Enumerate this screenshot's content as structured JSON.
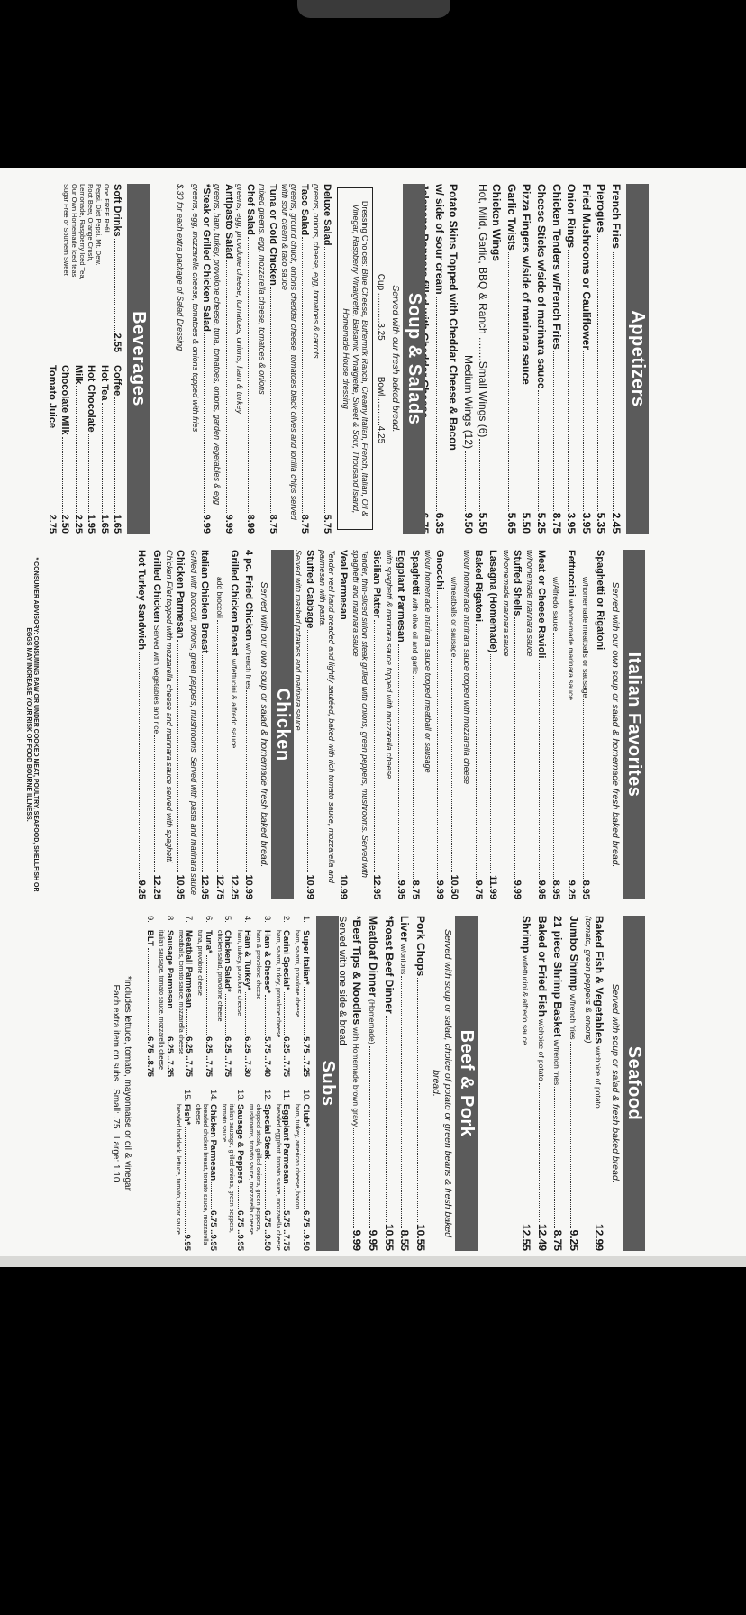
{
  "appetizers": {
    "title": "Appetizers",
    "items": [
      {
        "name": "French Fries",
        "price": "2.45"
      },
      {
        "name": "Pierogies",
        "price": "5.35"
      },
      {
        "name": "Fried Mushrooms or Cauliflower",
        "price": "3.95"
      },
      {
        "name": "Onion Rings",
        "price": "3.95"
      },
      {
        "name": "Chicken Tenders w/French Fries",
        "price": "8.75"
      },
      {
        "name": "Cheese Sticks w/side of marinara sauce",
        "price": "5.25"
      },
      {
        "name": "Pizza Fingers w/side of marinara sauce",
        "price": "5.50"
      },
      {
        "name": "Garlic Twists",
        "price": "5.65"
      },
      {
        "name": "Chicken Wings",
        "sizes": [
          {
            "label": "Hot, Mild, Garlic, BBQ & Ranch ........Small Wings (6)",
            "price": "5.50"
          },
          {
            "label": "Medium Wings (12)",
            "price": "9.50"
          }
        ]
      },
      {
        "name": "Potato Skins Topped with Cheddar Cheese & Bacon",
        "line2": "w/ side of sour cream",
        "price": "6.35"
      },
      {
        "name": "Jalapeno Poppers filled with Cheddar Cheese",
        "price": "6.75"
      }
    ]
  },
  "soup_salads": {
    "title": "Soup & Salads",
    "subtitle": "Served with our fresh baked bread.",
    "cup": "Cup ............3.25",
    "bowl": "Bowl............4.25",
    "dressing_label": "Dressing Choices:",
    "dressing_choices": "Blue Cheese, Buttermilk Ranch, Creamy Italian, French, Italian, Oil & Vinegar, Raspberry Vinaigrette, Balsamic Vinaigrette, Sweet & Sour, Thousand Island, Homemade House dressing",
    "items": [
      {
        "name": "Deluxe Salad",
        "price": "5.75",
        "desc": "greens, onions, cheese, egg, tomatoes & carrots"
      },
      {
        "name": "Taco Salad",
        "price": "8.75",
        "desc": "greens, ground chuck, onions cheddar cheese, tomatoes black olives and tortilla chips served with sour cream & taco sauce"
      },
      {
        "name": "Tuna or Cold Chicken",
        "price": "8.75",
        "desc": "mixed greens, egg, mozzarella cheese, tomatoes & onions"
      },
      {
        "name": "Chef Salad",
        "price": "8.99",
        "desc": "greens, egg, provolone cheese, tomatoes, onions, ham & turkey"
      },
      {
        "name": "Antipasto Salad",
        "price": "9.99",
        "desc": "greens, ham, turkey, provolone cheese, tuna, tomatoes, onions, garden vegetables & egg"
      },
      {
        "name": "*Steak or Grilled Chicken Salad",
        "price": "9.99",
        "desc": "greens, egg, mozzarella cheese, tomatoes & onions topped with fries"
      }
    ],
    "extra_note": "$.30 for each extra package of Salad Dressing"
  },
  "beverages": {
    "title": "Beverages",
    "soft_drinks": {
      "name": "Soft Drinks",
      "price": "2.55",
      "refill": "One FREE Refill",
      "desc": [
        "Pepsi, Diet Pepsi, Mt. Dew,",
        "Root Beer, Orange Crush,",
        "Lemonade, Raspberry Iced Tea,",
        "Our Own Homemade Iced teas:",
        "Sugar Free or Southern Sweet"
      ]
    },
    "items": [
      {
        "name": "Coffee",
        "price": "1.65"
      },
      {
        "name": "Hot Tea",
        "price": "1.65"
      },
      {
        "name": "Hot Chocolate",
        "price": "1.95"
      },
      {
        "name": "Milk",
        "price": "2.25"
      },
      {
        "name": "Chocolate Milk",
        "price": "2.50"
      },
      {
        "name": "Tomato Juice",
        "price": "2.75"
      }
    ]
  },
  "italian": {
    "title": "Italian Favorites",
    "subtitle": "Served with our own soup or salad & homemade fresh baked bread.",
    "items": [
      {
        "name": "Spaghetti or Rigatoni"
      },
      {
        "name": "",
        "note": "w/homemade meatballs or sausage",
        "price": "8.95"
      },
      {
        "name": "Fettuccini",
        "note": "w/homemade marinara sauce",
        "price": "9.25"
      },
      {
        "name": "",
        "note": "w/Alfredo sauce",
        "price": "8.95"
      },
      {
        "name": "Meat or Cheese Ravioli",
        "price": "9.95",
        "desc": "w/homemade marinara sauce"
      },
      {
        "name": "Stuffed Shells",
        "price": "9.99",
        "desc": "w/homemade marinara sauce"
      },
      {
        "name": "Lasagna (Homemade)",
        "price": "11.99"
      },
      {
        "name": "Baked Rigatoni",
        "price": "9.75",
        "desc": "w/our homemade marinara sauce topped with mozzarella cheese"
      },
      {
        "name": "",
        "note": "w/meatballs or sausage",
        "price": "10.50"
      },
      {
        "name": "Gnocchi",
        "price": "9.99",
        "desc": "w/our homemade marinara sauce topped meatball or sausage"
      },
      {
        "name": "Spaghetti",
        "note": "with olive oil and garlic",
        "price": "8.75"
      },
      {
        "name": "Eggplant Parmesan",
        "price": "9.95",
        "desc": "with spaghetti & marinara sauce topped with mozzarella cheese"
      },
      {
        "name": "Sicilian Platter",
        "price": "12.95",
        "desc": "Tender, thin-sliced sirloin steak grilled with onions, green peppers, mushrooms. Served with spaghetti and marinara sauce"
      },
      {
        "name": "Veal Parmesan",
        "price": "10.99",
        "desc": "Tender veal hand breaded and lightly sautéed, baked with rich tomato sauce, mozzarella and parmesan with pasta."
      },
      {
        "name": "Stuffed Cabbage",
        "price": "10.99",
        "desc": "Served with mashed potatoes and marinara sauce"
      }
    ]
  },
  "chicken": {
    "title": "Chicken",
    "subtitle": "Served with our own soup or salad & homemade fresh baked bread.",
    "items": [
      {
        "name": "4 pc. Fried Chicken",
        "note": "w/french fries",
        "price": "10.99"
      },
      {
        "name": "Grilled Chicken Breast",
        "note": "w/fettucini & alfredo sauce",
        "price": "12.25"
      },
      {
        "name": "",
        "note": "add broccoli",
        "price": "12.75"
      },
      {
        "name": "Italian Chicken Breast",
        "price": "12.95",
        "desc": "Grilled with broccoli, onions, green peppers, mushrooms. Served with pasta and marinara sauce"
      },
      {
        "name": "Chicken Parmesan",
        "price": "10.95",
        "desc": "Chicken Filet topped with mozzarella cheese and marinara sauce served with spaghetti"
      },
      {
        "name": "Grilled Chicken",
        "note": "Served with vegetables and rice",
        "price": "12.25"
      },
      {
        "name": "Hot Turkey Sandwich",
        "price": "9.25"
      }
    ]
  },
  "advisory": "* CONSUMER ADVISORY: CONSUMING RAW OR UNDER COOKED MEAT, POULTRY, SEAFOOD, SHELLFISH OR EGGS MAY INCREASE YOUR RISK OF FOOD BOURNE ILLNESS.",
  "seafood": {
    "title": "Seafood",
    "subtitle": "Served with soup or salad & fresh baked bread.",
    "items": [
      {
        "name": "Baked Fish & Vegetables",
        "note": "w/choice of potato",
        "price": "12.99",
        "desc": "(tomato, green peppers & onions)"
      },
      {
        "name": "Jumbo Shrimp",
        "note": "w/french fries",
        "price": "9.25"
      },
      {
        "name": "21 piece Shrimp Basket",
        "note": "w/french fries",
        "price": "8.75"
      },
      {
        "name": "Baked or Fried Fish",
        "note": "w/choice of potato",
        "price": "12.49"
      },
      {
        "name": "Shrimp",
        "note": "w/fettucini & alfredo sauce",
        "price": "12.55"
      }
    ]
  },
  "beef_pork": {
    "title": "Beef & Pork",
    "subtitle": "Served with soup or salad, choice of potato or green beans & fresh baked bread.",
    "items": [
      {
        "name": "Pork Chops",
        "price": "10.55"
      },
      {
        "name": "Liver",
        "note": "w/onions",
        "price": "8.55"
      },
      {
        "name": "*Roast Beef Dinner",
        "price": "10.55"
      },
      {
        "name": "Meatloaf Dinner",
        "note": "(Homemade)",
        "price": "9.95"
      },
      {
        "name": "*Beef Tips & Noodles",
        "note": "with Homemade brown gravy",
        "price": "9.99"
      }
    ],
    "footer": "Served with one side & bread"
  },
  "subs": {
    "title": "Subs",
    "items": [
      {
        "num": "1.",
        "name": "Super Italian*",
        "price": "5.75 ..7.25",
        "desc": "ham, salami, provolone cheese"
      },
      {
        "num": "2.",
        "name": "Carini Special*",
        "price": "6.25 ..7.75",
        "desc": "ham, salami, turkey, provolone cheese"
      },
      {
        "num": "3.",
        "name": "Ham & Cheese*",
        "price": "5.75 ..7.40",
        "desc": "ham & provolone cheese"
      },
      {
        "num": "4.",
        "name": "Ham & Turkey*",
        "price": "6.25 ..7.30",
        "desc": "ham, turkey, provolone cheese"
      },
      {
        "num": "5.",
        "name": "Chicken Salad*",
        "price": "6.25 ..7.75",
        "desc": "chicken salad, provolone cheese"
      },
      {
        "num": "6.",
        "name": "Tuna*",
        "price": "6.25 ..7.75",
        "desc": "tuna, provolone cheese"
      },
      {
        "num": "7.",
        "name": "Meatball Parmesan",
        "price": "6.25 ..7.75",
        "desc": "meatballs, tomato sauce, mozzarella cheese"
      },
      {
        "num": "8.",
        "name": "Sausage Parmesan",
        "price": "6.25 ..7.35",
        "desc": "italian sausage, tomato sauce, mozzarella cheese"
      },
      {
        "num": "9.",
        "name": "BLT",
        "price": "6.75 ..8.75"
      },
      {
        "num": "10.",
        "name": "Club*",
        "price": "6.75 ..9.50",
        "desc": "ham, turkey, american cheese, bacon"
      },
      {
        "num": "11.",
        "name": "Eggplant Parmesan",
        "price": "5.75 ..7.75",
        "desc": "breaded eggplant, tomato sauce, mozzarella cheese"
      },
      {
        "num": "12.",
        "name": "Special Steak",
        "price": "6.75 ..9.50",
        "desc": "chopped steak, grilled onions, green peppers, mushrooms, tomato sauce, mozzarella cheese"
      },
      {
        "num": "13.",
        "name": "Sausage & Peppers",
        "price": "6.75 ..9.95",
        "desc": "italian sausage, grilled onions, green peppers, tomato sauce"
      },
      {
        "num": "14.",
        "name": "Chicken Parmesan",
        "price": "6.75 ..9.95",
        "desc": "breaded chicken breast, tomato sauce, mozzarella cheese"
      },
      {
        "num": "15.",
        "name": "Fish*",
        "price": "9.95",
        "desc": "breaded haddock, lettuce, tomato, tartar sauce"
      }
    ],
    "includes_note": "*includes lettuce, tomato, mayonnaise or oil & vinegar",
    "extra_item_note": "Each extra item on subs   Small: .75   Large: 1.10"
  }
}
